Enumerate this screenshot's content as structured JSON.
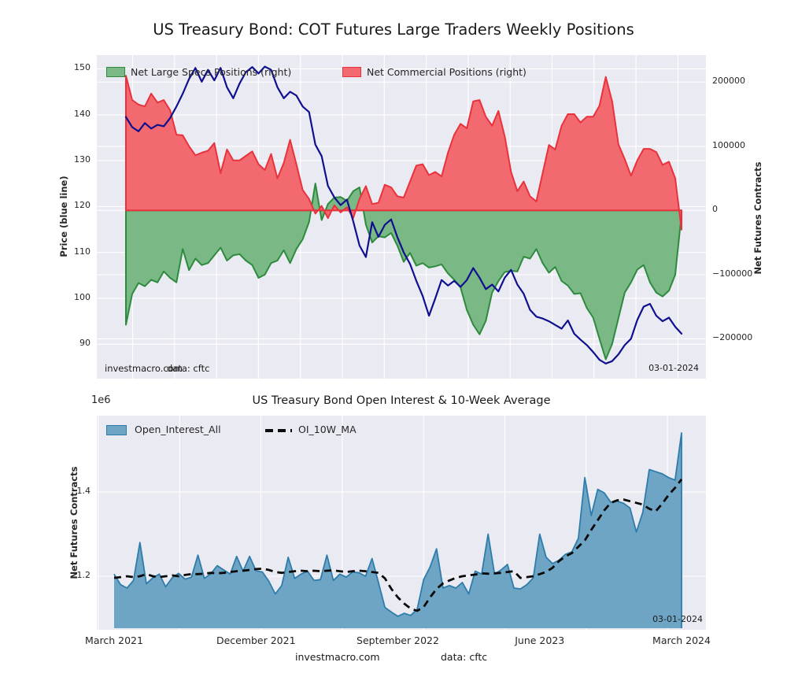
{
  "colors": {
    "page_bg": "#ffffff",
    "plot_bg": "#eaeaf2",
    "grid": "#ffffff",
    "text": "#262626",
    "price_line": "#10108f",
    "specs_fill": "#7ab886",
    "specs_line": "#2e8b3d",
    "commercial_fill": "#f2696f",
    "commercial_line": "#e8323c",
    "oi_fill": "#6fa5c4",
    "oi_line": "#2e7cab",
    "ma_line": "#0a0a0a"
  },
  "chart_data": [
    {
      "type": "area",
      "title": "US Treasury Bond: COT Futures Large Traders Weekly Positions",
      "grid": true,
      "legend_position": "top-inside",
      "x_range": [
        "March 2021",
        "March 2024"
      ],
      "x_ticks": [],
      "left_axis": {
        "label": "Price (blue line)",
        "ticks": [
          150,
          140,
          130,
          120,
          110,
          100,
          90
        ],
        "range": [
          82.5,
          153
        ]
      },
      "right_axis": {
        "label": "Net Futures Contracts",
        "ticks": [
          200000,
          100000,
          0,
          -100000,
          -200000
        ],
        "range": [
          -262000,
          242000
        ]
      },
      "annotations": {
        "watermark": "investmacro.com",
        "source": "data: cftc",
        "date_stamp": "03-01-2024"
      },
      "values_unit_note": "area series stored in thousands of contracts",
      "series": [
        {
          "name": "Net Large Specs Positions (right)",
          "type": "area",
          "axis": "right",
          "color_key": "specs",
          "scale": 1000,
          "values": [
            -178,
            -130,
            -113,
            -118,
            -108,
            -112,
            -95,
            -105,
            -112,
            -60,
            -93,
            -75,
            -85,
            -82,
            -70,
            -58,
            -78,
            -70,
            -68,
            -78,
            -85,
            -105,
            -100,
            -82,
            -78,
            -62,
            -82,
            -60,
            -45,
            -18,
            42,
            -15,
            10,
            20,
            21,
            15,
            30,
            36,
            -22,
            -50,
            -40,
            -42,
            -35,
            -55,
            -80,
            -66,
            -86,
            -82,
            -89,
            -87,
            -84,
            -98,
            -108,
            -120,
            -155,
            -178,
            -193,
            -172,
            -128,
            -110,
            -96,
            -94,
            -95,
            -72,
            -75,
            -60,
            -82,
            -97,
            -88,
            -110,
            -117,
            -130,
            -129,
            -152,
            -167,
            -200,
            -232,
            -208,
            -168,
            -128,
            -112,
            -92,
            -85,
            -112,
            -128,
            -134,
            -125,
            -100,
            -6
          ]
        },
        {
          "name": "Net Commercial Positions (right)",
          "type": "area",
          "axis": "right",
          "color_key": "commercial",
          "scale": 1000,
          "values": [
            210,
            172,
            165,
            162,
            182,
            168,
            172,
            156,
            118,
            117,
            100,
            86,
            90,
            93,
            105,
            58,
            95,
            78,
            78,
            85,
            92,
            72,
            63,
            88,
            50,
            74,
            110,
            72,
            32,
            18,
            -5,
            7,
            -12,
            8,
            -3,
            5,
            -12,
            18,
            38,
            10,
            12,
            40,
            36,
            22,
            20,
            45,
            70,
            72,
            55,
            60,
            53,
            90,
            118,
            135,
            128,
            170,
            172,
            146,
            132,
            155,
            115,
            60,
            30,
            45,
            22,
            14,
            58,
            102,
            95,
            132,
            150,
            150,
            137,
            146,
            146,
            163,
            208,
            170,
            103,
            80,
            54,
            78,
            96,
            96,
            91,
            71,
            76,
            50,
            -30
          ]
        },
        {
          "name": "Price",
          "type": "line",
          "axis": "left",
          "color_key": "price",
          "scale": 1,
          "values": [
            139.5,
            137.3,
            136.4,
            138.2,
            137.0,
            137.8,
            137.5,
            139.3,
            141.8,
            144.6,
            147.8,
            150.2,
            147.2,
            149.8,
            147.5,
            150.2,
            146.0,
            143.6,
            146.8,
            149.3,
            150.4,
            149.0,
            150.5,
            149.8,
            146.0,
            143.6,
            145.0,
            144.2,
            141.8,
            140.6,
            133.5,
            131.0,
            124.5,
            122.0,
            120.3,
            121.5,
            116.8,
            111.5,
            109.0,
            116.6,
            113.4,
            116.0,
            117.2,
            113.3,
            110.0,
            107.5,
            103.8,
            100.5,
            96.2,
            100.0,
            104.0,
            102.8,
            103.8,
            102.5,
            104.0,
            106.6,
            104.5,
            102.0,
            103.0,
            101.5,
            104.5,
            106.2,
            103.0,
            101.0,
            97.5,
            96.0,
            95.6,
            95.0,
            94.2,
            93.4,
            95.2,
            92.3,
            91.0,
            89.8,
            88.3,
            86.6,
            85.8,
            86.3,
            87.8,
            89.8,
            91.2,
            95.3,
            98.2,
            98.8,
            96.2,
            95.0,
            95.8,
            93.8,
            92.3
          ]
        }
      ]
    },
    {
      "type": "area",
      "title": "US Treasury Bond Open Interest & 10-Week Average",
      "grid": true,
      "offset_label": "1e6",
      "y_axis": {
        "label": "Net Futures Contracts",
        "ticks": [
          1.4,
          1.2
        ],
        "range": [
          1.073,
          1.581
        ],
        "unit": "1e6"
      },
      "x_ticks": [
        "March 2021",
        "December 2021",
        "September 2022",
        "June 2023",
        "March 2024"
      ],
      "annotations": {
        "date_stamp": "03-01-2024",
        "footer_site": "investmacro.com",
        "footer_source": "data: cftc"
      },
      "values_unit_note": "series stored in millions of contracts",
      "series": [
        {
          "name": "Open_Interest_All",
          "type": "area",
          "color_key": "oi",
          "scale": 1,
          "values": [
            1.205,
            1.18,
            1.172,
            1.19,
            1.28,
            1.182,
            1.196,
            1.205,
            1.175,
            1.196,
            1.207,
            1.193,
            1.198,
            1.25,
            1.195,
            1.206,
            1.225,
            1.215,
            1.205,
            1.247,
            1.212,
            1.247,
            1.213,
            1.21,
            1.188,
            1.158,
            1.178,
            1.245,
            1.195,
            1.205,
            1.212,
            1.19,
            1.192,
            1.25,
            1.19,
            1.205,
            1.198,
            1.21,
            1.208,
            1.2,
            1.242,
            1.185,
            1.126,
            1.115,
            1.105,
            1.112,
            1.107,
            1.122,
            1.192,
            1.222,
            1.265,
            1.172,
            1.178,
            1.172,
            1.185,
            1.158,
            1.212,
            1.205,
            1.3,
            1.205,
            1.215,
            1.228,
            1.172,
            1.17,
            1.18,
            1.196,
            1.3,
            1.245,
            1.23,
            1.238,
            1.252,
            1.258,
            1.29,
            1.434,
            1.344,
            1.406,
            1.398,
            1.376,
            1.378,
            1.373,
            1.362,
            1.305,
            1.352,
            1.453,
            1.448,
            1.443,
            1.434,
            1.428,
            1.54
          ]
        },
        {
          "name": "OI_10W_MA",
          "type": "dashed-line",
          "color_key": "ma",
          "scale": 1,
          "values": [
            1.196,
            1.198,
            1.2,
            1.198,
            1.2,
            1.205,
            1.2,
            1.198,
            1.2,
            1.202,
            1.2,
            1.203,
            1.205,
            1.205,
            1.206,
            1.208,
            1.207,
            1.208,
            1.21,
            1.212,
            1.213,
            1.215,
            1.217,
            1.218,
            1.215,
            1.21,
            1.208,
            1.21,
            1.212,
            1.213,
            1.212,
            1.213,
            1.212,
            1.213,
            1.214,
            1.212,
            1.21,
            1.212,
            1.213,
            1.212,
            1.21,
            1.208,
            1.195,
            1.17,
            1.15,
            1.135,
            1.123,
            1.118,
            1.127,
            1.15,
            1.17,
            1.183,
            1.19,
            1.196,
            1.2,
            1.202,
            1.204,
            1.207,
            1.206,
            1.207,
            1.208,
            1.21,
            1.212,
            1.196,
            1.198,
            1.2,
            1.205,
            1.21,
            1.22,
            1.236,
            1.247,
            1.255,
            1.27,
            1.285,
            1.31,
            1.333,
            1.356,
            1.374,
            1.38,
            1.382,
            1.378,
            1.374,
            1.37,
            1.36,
            1.354,
            1.372,
            1.393,
            1.41,
            1.43
          ]
        }
      ]
    }
  ]
}
